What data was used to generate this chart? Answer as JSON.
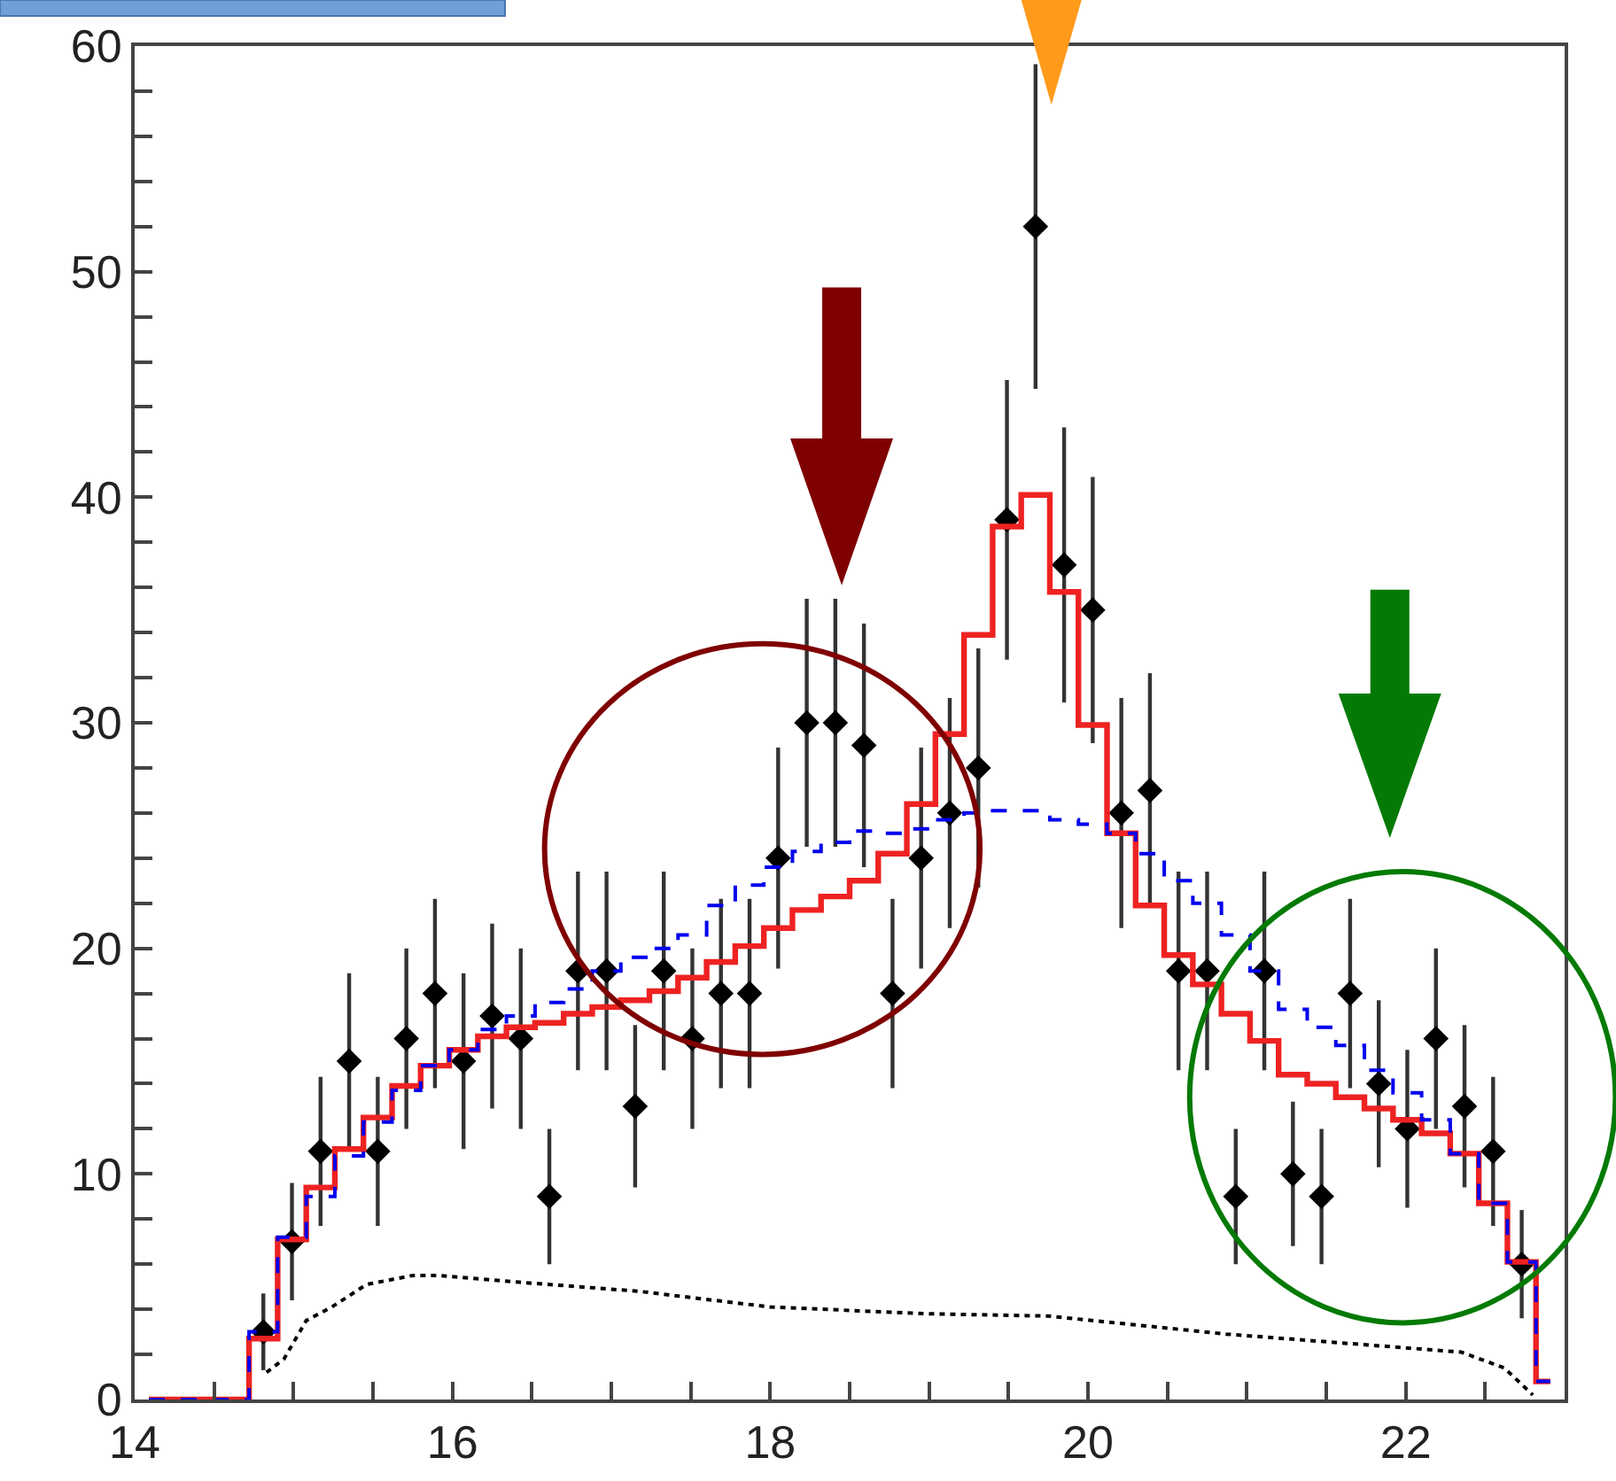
{
  "chart_data": {
    "type": "scatter",
    "x": [
      14.09,
      14.27,
      14.45,
      14.63,
      14.81,
      14.99,
      15.17,
      15.35,
      15.53,
      15.71,
      15.89,
      16.07,
      16.25,
      16.43,
      16.61,
      16.79,
      16.97,
      17.15,
      17.33,
      17.51,
      17.69,
      17.87,
      18.05,
      18.23,
      18.41,
      18.59,
      18.77,
      18.95,
      19.13,
      19.31,
      19.49,
      19.67,
      19.85,
      20.03,
      20.21,
      20.39,
      20.57,
      20.75,
      20.93,
      21.11,
      21.29,
      21.47,
      21.65,
      21.83,
      22.01,
      22.19,
      22.37,
      22.55,
      22.73,
      22.91
    ],
    "series": [
      {
        "color": "#000000",
        "marker": "diamond",
        "values": [
          null,
          null,
          null,
          null,
          3,
          7,
          11,
          15,
          11,
          16,
          18,
          15,
          17,
          16,
          9,
          19,
          19,
          13,
          19,
          16,
          18,
          18,
          24,
          30,
          30,
          29,
          18,
          24,
          26,
          28,
          39,
          52,
          37,
          35,
          26,
          27,
          19,
          19,
          9,
          19,
          10,
          9,
          18,
          14,
          12,
          16,
          13,
          11,
          6,
          null
        ],
        "errors": [
          null,
          null,
          null,
          null,
          1.7,
          2.6,
          3.3,
          3.9,
          3.3,
          4,
          4.2,
          3.9,
          4.1,
          4,
          3,
          4.4,
          4.4,
          3.6,
          4.4,
          4,
          4.2,
          4.2,
          4.9,
          5.5,
          5.5,
          5.4,
          4.2,
          4.9,
          5.1,
          5.3,
          6.2,
          7.2,
          6.1,
          5.9,
          5.1,
          5.2,
          4.4,
          4.4,
          3,
          4.4,
          3.2,
          3,
          4.2,
          3.7,
          3.5,
          4,
          3.6,
          3.3,
          2.4,
          null
        ]
      },
      {
        "type": "step",
        "color": "#ee2222",
        "line_style": "solid",
        "values": [
          0,
          0,
          0,
          0,
          2.7,
          7.1,
          9.4,
          11.1,
          12.5,
          13.9,
          14.8,
          15.5,
          16.1,
          16.5,
          16.7,
          17.1,
          17.4,
          17.7,
          18.1,
          18.7,
          19.4,
          20.1,
          20.9,
          21.7,
          22.3,
          23,
          24.2,
          26.4,
          29.5,
          33.9,
          38.7,
          40.1,
          35.8,
          29.9,
          25.1,
          21.9,
          19.7,
          18.4,
          17.1,
          15.9,
          14.4,
          14,
          13.4,
          12.9,
          12.4,
          11.8,
          10.9,
          8.7,
          6.1,
          0.8
        ]
      },
      {
        "type": "step",
        "color": "#0000ee",
        "line_style": "dashed",
        "values": [
          0,
          0,
          0,
          0,
          3,
          7.2,
          9,
          10.8,
          12.3,
          13.7,
          14.8,
          15.5,
          16.4,
          17,
          17.6,
          18.2,
          19,
          19.6,
          20,
          20.6,
          21.9,
          22.8,
          23.6,
          24.3,
          24.7,
          25.2,
          25.1,
          25.3,
          25.7,
          26,
          26.1,
          26.1,
          25.7,
          25.5,
          25.1,
          24.2,
          23,
          22,
          20.6,
          19,
          17.3,
          16.5,
          15.7,
          14.6,
          13.6,
          12.4,
          10.9,
          8.7,
          6.1,
          0.8
        ]
      },
      {
        "type": "line",
        "color": "#000000",
        "line_style": "dotted",
        "x": [
          14.83,
          14.94,
          15.08,
          15.24,
          15.46,
          15.75,
          15.91,
          16.42,
          17.17,
          18,
          19,
          19.75,
          20.87,
          21.98,
          22.35,
          22.62,
          22.8
        ],
        "values": [
          1.2,
          1.8,
          3.5,
          4.1,
          5.1,
          5.5,
          5.5,
          5.2,
          4.8,
          4.1,
          3.8,
          3.7,
          2.9,
          2.3,
          2.1,
          1.4,
          0.2
        ]
      }
    ],
    "xlim": [
      14,
      23
    ],
    "xticks": [
      14,
      {
        "value": 14.5,
        "label": null
      },
      {
        "value": 15,
        "label": null
      },
      {
        "value": 15.5,
        "label": null
      },
      16,
      {
        "value": 16.5,
        "label": null
      },
      {
        "value": 17,
        "label": null
      },
      {
        "value": 17.5,
        "label": null
      },
      18,
      {
        "value": 18.5,
        "label": null
      },
      {
        "value": 19,
        "label": null
      },
      {
        "value": 19.5,
        "label": null
      },
      20,
      {
        "value": 20.5,
        "label": null
      },
      {
        "value": 21,
        "label": null
      },
      {
        "value": 21.5,
        "label": null
      },
      22,
      {
        "value": 22.5,
        "label": null
      }
    ],
    "ylim": [
      0,
      60
    ],
    "yticks": [
      0,
      {
        "value": 2,
        "label": null
      },
      {
        "value": 4,
        "label": null
      },
      {
        "value": 6,
        "label": null
      },
      {
        "value": 8,
        "label": null
      },
      10,
      {
        "value": 12,
        "label": null
      },
      {
        "value": 14,
        "label": null
      },
      {
        "value": 16,
        "label": null
      },
      {
        "value": 18,
        "label": null
      },
      20,
      {
        "value": 22,
        "label": null
      },
      {
        "value": 24,
        "label": null
      },
      {
        "value": 26,
        "label": null
      },
      {
        "value": 28,
        "label": null
      },
      30,
      {
        "value": 32,
        "label": null
      },
      {
        "value": 34,
        "label": null
      },
      {
        "value": 36,
        "label": null
      },
      {
        "value": 38,
        "label": null
      },
      40,
      {
        "value": 42,
        "label": null
      },
      {
        "value": 44,
        "label": null
      },
      {
        "value": 46,
        "label": null
      },
      {
        "value": 48,
        "label": null
      },
      50,
      {
        "value": 52,
        "label": null
      },
      {
        "value": 54,
        "label": null
      },
      {
        "value": 56,
        "label": null
      },
      {
        "value": 58,
        "label": null
      },
      60
    ]
  }
}
